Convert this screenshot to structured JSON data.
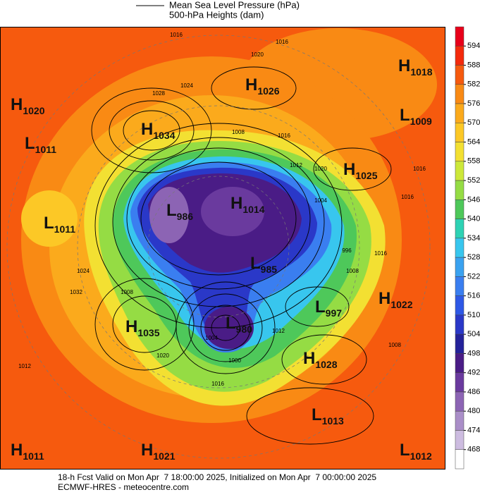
{
  "legend": {
    "items": [
      "Mean Sea Level Pressure (hPa)",
      "500-hPa Heights (dam)"
    ]
  },
  "colorbar": {
    "ticks": [
      594,
      588,
      582,
      576,
      570,
      564,
      558,
      552,
      546,
      540,
      534,
      528,
      522,
      516,
      510,
      504,
      498,
      492,
      486,
      480,
      474,
      468
    ],
    "colors": [
      "#e8001a",
      "#f42a0c",
      "#f65a0e",
      "#f98a14",
      "#fbaa1c",
      "#fcc826",
      "#f3e032",
      "#cde83a",
      "#95dc44",
      "#4ec85a",
      "#2ed2b4",
      "#38c6ee",
      "#3aa2f0",
      "#3a7ef0",
      "#2e58e6",
      "#2a38c8",
      "#24229a",
      "#4a1c86",
      "#6a3a9e",
      "#8c64b4",
      "#aa8ec8",
      "#cdbce0",
      "#ffffff"
    ]
  },
  "centers": [
    {
      "letter": "H",
      "value": 1018
    },
    {
      "letter": "H",
      "value": 1026
    },
    {
      "letter": "H",
      "value": 1020
    },
    {
      "letter": "L",
      "value": 1009
    },
    {
      "letter": "H",
      "value": 1034
    },
    {
      "letter": "L",
      "value": 1011
    },
    {
      "letter": "H",
      "value": 1025
    },
    {
      "letter": "L",
      "value": 986
    },
    {
      "letter": "H",
      "value": 1014
    },
    {
      "letter": "L",
      "value": 1011
    },
    {
      "letter": "L",
      "value": 985
    },
    {
      "letter": "L",
      "value": 997
    },
    {
      "letter": "H",
      "value": 1022
    },
    {
      "letter": "H",
      "value": 1035
    },
    {
      "letter": "L",
      "value": 980
    },
    {
      "letter": "H",
      "value": 1028
    },
    {
      "letter": "L",
      "value": 1013
    },
    {
      "letter": "H",
      "value": 1011
    },
    {
      "letter": "H",
      "value": 1021
    },
    {
      "letter": "L",
      "value": 1012
    }
  ],
  "contour_labels": [
    1016,
    1020,
    1016,
    1028,
    1024,
    1008,
    1016,
    1012,
    1020,
    1004,
    996,
    1008,
    1016,
    1024,
    1032,
    1008,
    1012,
    1004,
    1000,
    1016,
    1020,
    1008,
    1012,
    1016,
    1016
  ],
  "footer": {
    "line1": "18-h Fcst Valid on Mon Apr  7 18:00:00 2025, Initialized on Mon Apr  7 00:00:00 2025",
    "line2": "ECMWF-HRES - meteocentre.com"
  }
}
